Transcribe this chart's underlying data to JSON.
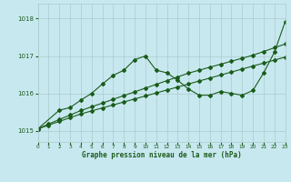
{
  "title": "Graphe pression niveau de la mer (hPa)",
  "background_color": "#c8e8f0",
  "grid_color": "#aacccc",
  "line_color": "#1a5c1a",
  "xlim": [
    0,
    23
  ],
  "ylim": [
    1014.7,
    1018.4
  ],
  "yticks": [
    1015,
    1016,
    1017,
    1018
  ],
  "xtick_labels": [
    "0",
    "1",
    "2",
    "3",
    "4",
    "5",
    "6",
    "7",
    "8",
    "9",
    "10",
    "11",
    "12",
    "13",
    "14",
    "15",
    "16",
    "17",
    "18",
    "19",
    "20",
    "21",
    "22",
    "23"
  ],
  "s1_x": [
    0,
    1,
    2,
    3,
    4,
    5,
    6,
    7,
    8,
    9,
    10,
    11,
    12,
    13,
    14,
    15,
    16,
    17,
    18,
    19,
    20,
    21,
    22,
    23
  ],
  "s1_y": [
    1015.05,
    1015.15,
    1015.25,
    1015.35,
    1015.45,
    1015.53,
    1015.61,
    1015.69,
    1015.77,
    1015.85,
    1015.93,
    1016.01,
    1016.09,
    1016.17,
    1016.25,
    1016.33,
    1016.41,
    1016.49,
    1016.57,
    1016.65,
    1016.73,
    1016.81,
    1016.89,
    1016.97
  ],
  "s2_x": [
    0,
    1,
    2,
    3,
    4,
    5,
    6,
    7,
    8,
    9,
    10,
    11,
    12,
    13,
    14,
    15,
    16,
    17,
    18,
    19,
    20,
    21,
    22,
    23
  ],
  "s2_y": [
    1015.05,
    1015.18,
    1015.3,
    1015.42,
    1015.54,
    1015.64,
    1015.74,
    1015.84,
    1015.94,
    1016.04,
    1016.14,
    1016.24,
    1016.34,
    1016.44,
    1016.54,
    1016.62,
    1016.7,
    1016.78,
    1016.86,
    1016.94,
    1017.02,
    1017.12,
    1017.22,
    1017.32
  ],
  "s3_x": [
    0,
    2,
    3,
    4,
    5,
    6,
    7,
    8,
    9,
    10,
    11,
    12,
    13,
    14,
    15,
    16,
    17,
    18,
    19,
    20,
    21,
    22,
    23
  ],
  "s3_y": [
    1015.05,
    1015.55,
    1015.62,
    1015.82,
    1016.0,
    1016.25,
    1016.48,
    1016.62,
    1016.9,
    1017.0,
    1016.62,
    1016.55,
    1016.35,
    1016.12,
    1015.95,
    1015.95,
    1016.05,
    1016.0,
    1015.95,
    1016.08,
    1016.55,
    1017.1,
    1017.92
  ]
}
